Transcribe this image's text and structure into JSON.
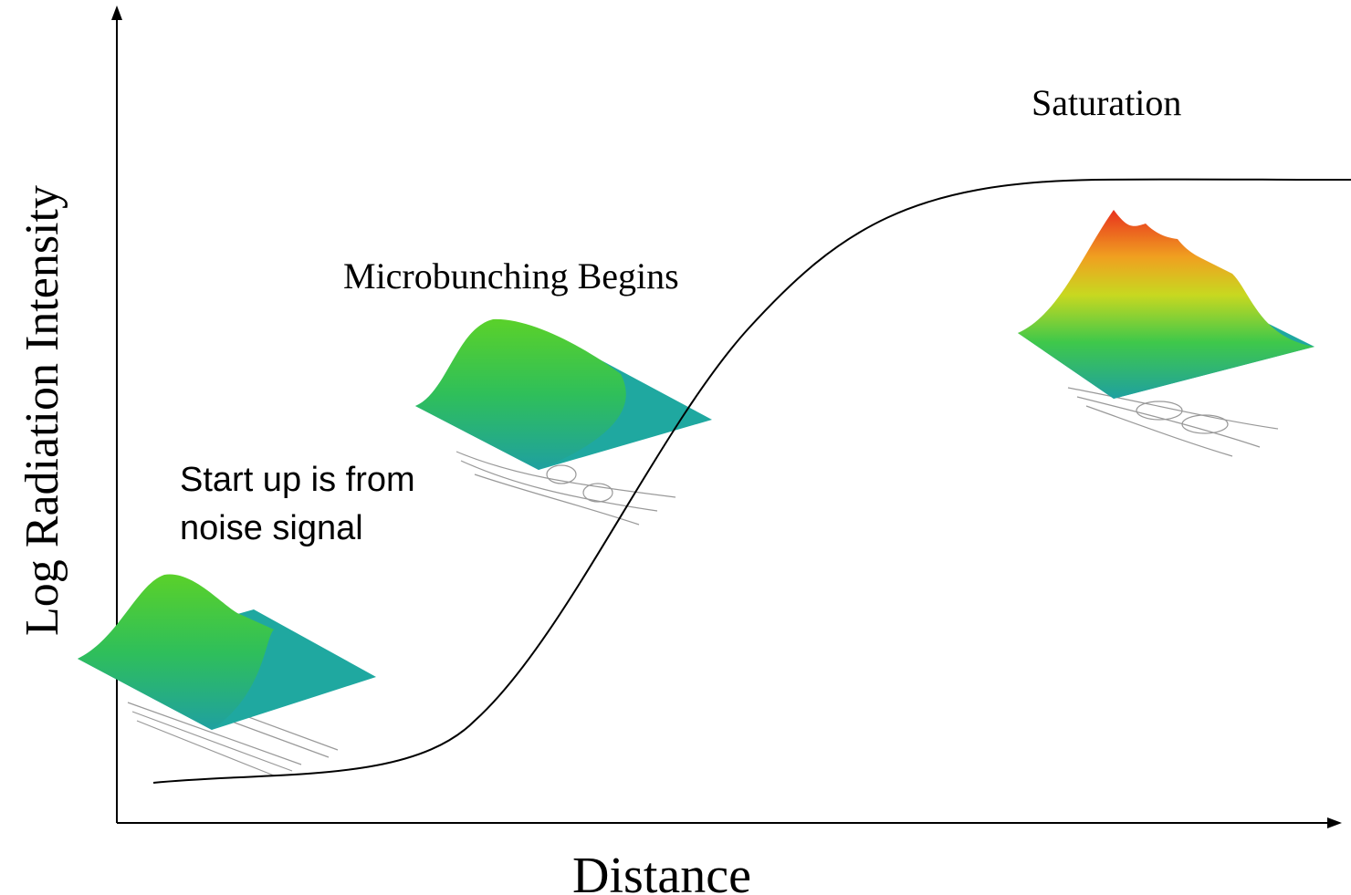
{
  "axes": {
    "x_label": "Distance",
    "y_label": "Log Radiation Intensity"
  },
  "annotations": {
    "startup": [
      "Start up is from",
      "noise signal"
    ],
    "microbunching": "Microbunching Begins",
    "saturation": "Saturation"
  }
}
